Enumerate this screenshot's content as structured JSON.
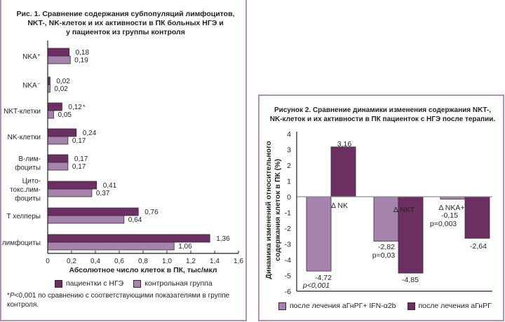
{
  "colors": {
    "patients": "#6b2f62",
    "control": "#a683ad",
    "frame": "#b48fb6",
    "bar_outline": "#3d2438",
    "zero_line": "#8a8a8a"
  },
  "chart_data": [
    {
      "type": "bar",
      "orientation": "horizontal",
      "title": "Рис. 1. Сравнение содержания субпопуляций лимфоцитов, NKT-, NK-клеток и их активности в ПК больных НГЭ и у пациенток из группы контроля",
      "title_lines": [
        "Рис. 1. Сравнение содержания субпопуляций лимфоцитов,",
        "NKT-, NK-клеток и их активности в ПК больных НГЭ и",
        "у пациенток из группы контроля"
      ],
      "categories": [
        "NKA⁺",
        "NKA⁻",
        "NKT-клетки",
        "NK-клетки",
        "В-лимфоциты",
        "Цитотокс.лимфоциты",
        "Т хелперы",
        "Т лимфоциты"
      ],
      "category_label_lines": [
        [
          "NKA⁺"
        ],
        [
          "NKA⁻"
        ],
        [
          "NKT-клетки"
        ],
        [
          "NK-клетки"
        ],
        [
          "В-лим-",
          "фоциты"
        ],
        [
          "Цито-",
          "токс.лим-",
          "фоциты"
        ],
        [
          "Т хелперы"
        ],
        [
          "Т лимфоциты"
        ]
      ],
      "series": [
        {
          "name": "пациентки с НГЭ",
          "key": "patients",
          "values": [
            0.18,
            0.02,
            0.12,
            0.24,
            0.17,
            0.41,
            0.76,
            1.36
          ],
          "labels": [
            "0,18",
            "0,02",
            "0,12",
            "0,24",
            "0,17",
            "0,41",
            "0,76",
            "1,36"
          ]
        },
        {
          "name": "контрольная группа",
          "key": "control",
          "values": [
            0.19,
            0.02,
            0.05,
            0.17,
            0.17,
            0.37,
            0.64,
            1.06
          ],
          "labels": [
            "0,19",
            "0,02",
            "0,05",
            "0,17",
            "0,17",
            "0,37",
            "0,64",
            "1,06"
          ]
        }
      ],
      "annotations": [
        {
          "category": "NKT-клетки",
          "text": "*"
        }
      ],
      "xlabel": "Абсолютное число клеток в ПК, тыс/мкл",
      "ylabel": "",
      "xlim": [
        0,
        1.6
      ],
      "xticks": [
        0,
        0.2,
        0.4,
        0.6,
        0.8,
        1.0,
        1.2,
        1.4,
        1.6
      ],
      "xtick_labels": [
        "0",
        "0,2",
        "0,4",
        "0,6",
        "0,8",
        "1,0",
        "1,2",
        "1,4",
        "1,6"
      ],
      "grid": false,
      "legend_position": "bottom",
      "footnote_p": "P",
      "footnote_rest": "<0,001 по сравнению с соответствующими показателями в группе контроля.",
      "footnote_star": "*"
    },
    {
      "type": "bar",
      "orientation": "vertical",
      "title": "Рисунок 2. Сравнение динамики изменения содержания NKT-, NK-клеток и их активности в ПК пациенток с НГЭ после терапии.",
      "title_lines": [
        "Рисунок 2. Сравнение динамики изменения содержания NKT-,",
        "NK-клеток и их активности в ПК пациенток с НГЭ после терапии."
      ],
      "categories": [
        "Δ NK",
        "Δ NKT",
        "Δ NKA+"
      ],
      "series": [
        {
          "name": "после лечения аГнРГ+ IFN-α2b",
          "key": "control",
          "values": [
            -4.72,
            -2.82,
            -0.15
          ],
          "labels": [
            "-4,72",
            "-2,82",
            "-0,15"
          ],
          "p_values": [
            "p<0,001",
            "p=0,03",
            "p=0,003"
          ]
        },
        {
          "name": "после лечения аГнРГ",
          "key": "patients",
          "values": [
            3.16,
            -4.85,
            -2.64
          ],
          "labels": [
            "3,16",
            "-4,85",
            "-2,64"
          ]
        }
      ],
      "xlabel": "",
      "ylabel_lines": [
        "Динамика изменений относительного",
        "содержания клеток в ПК (%)"
      ],
      "ylabel": "Динамика изменений относительного содержания клеток в ПК (%)",
      "ylim": [
        -6,
        4
      ],
      "yticks": [
        4,
        3,
        2,
        1,
        0,
        -1,
        -2,
        -3,
        -4,
        -5,
        -6
      ],
      "ytick_labels": [
        "4",
        "3",
        "2",
        "1",
        "0",
        "-1",
        "-2",
        "-3",
        "-4",
        "-5",
        "-6"
      ],
      "grid": false,
      "legend_position": "bottom"
    }
  ]
}
